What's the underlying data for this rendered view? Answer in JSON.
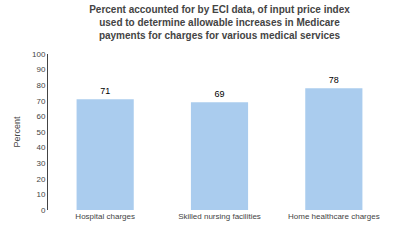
{
  "chart_data": {
    "type": "bar",
    "title": "Percent accounted for by ECI data, of input price index\nused to determine allowable increases in Medicare\npayments for charges for various medical services",
    "categories": [
      "Hospital charges",
      "Skilled nursing facilities",
      "Home healthcare charges"
    ],
    "values": [
      71,
      69,
      78
    ],
    "color": "#aaccee",
    "ylabel": "Percent",
    "ylim": [
      0,
      100
    ],
    "yticks": [
      0,
      10,
      20,
      30,
      40,
      50,
      60,
      70,
      80,
      90,
      100
    ],
    "grid": false,
    "data_labels": true
  }
}
